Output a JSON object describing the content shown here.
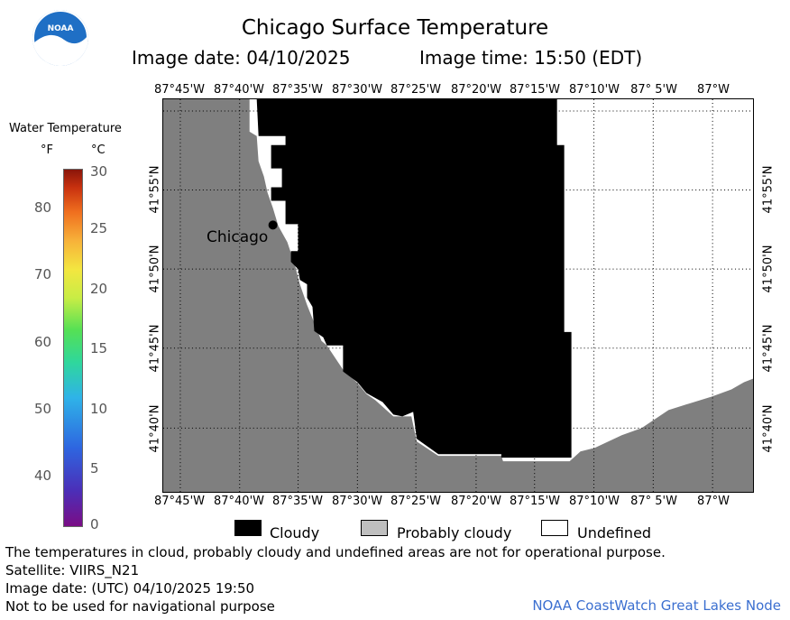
{
  "header": {
    "title": "Chicago Surface Temperature",
    "image_date": "Image date: 04/10/2025",
    "image_time": "Image time: 15:50 (EDT)",
    "logo_text": "NOAA"
  },
  "legend": {
    "title": "Water Temperature",
    "unit_f": "°F",
    "unit_c": "°C",
    "f_ticks": [
      "80",
      "70",
      "60",
      "50",
      "40"
    ],
    "c_ticks": [
      "30",
      "25",
      "20",
      "15",
      "10",
      "5",
      "0"
    ]
  },
  "map": {
    "lon_labels": [
      "87°45'W",
      "87°40'W",
      "87°35'W",
      "87°30'W",
      "87°25'W",
      "87°20'W",
      "87°15'W",
      "87°10'W",
      "87° 5'W",
      "87°W"
    ],
    "lat_labels": [
      "41°55'N",
      "41°50'N",
      "41°45'N",
      "41°40'N"
    ],
    "city_label": "Chicago",
    "colors": {
      "land": "#7f7f7f",
      "cloudy": "#000000",
      "undefined": "#ffffff",
      "probably_cloudy": "#bfbfbf"
    }
  },
  "key": {
    "cloudy": "Cloudy",
    "probably_cloudy": "Probably cloudy",
    "undefined": "Undefined"
  },
  "footer": {
    "line1": "The temperatures in cloud, probably cloudy and undefined areas are not for operational purpose.",
    "line2": "Satellite: VIIRS_N21",
    "line3": "Image date: (UTC) 04/10/2025  19:50",
    "line4": "Not to be used for navigational purpose",
    "credit": "NOAA CoastWatch Great Lakes Node"
  }
}
